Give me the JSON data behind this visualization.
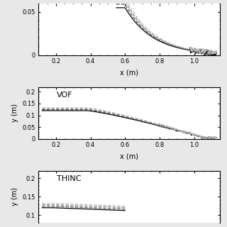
{
  "panel1_label": "",
  "panel2_label": "VOF",
  "panel3_label": "THINC",
  "xlabel": "x (m)",
  "ylabel": "y (m)",
  "xlim": [
    0.1,
    1.15
  ],
  "panel1_ylim": [
    0,
    0.06
  ],
  "panel2_ylim": [
    0,
    0.22
  ],
  "panel3_ylim": [
    0.08,
    0.22
  ],
  "panel1_yticks": [
    0,
    0.05
  ],
  "panel2_yticks": [
    0,
    0.05,
    0.1,
    0.15,
    0.2
  ],
  "panel3_yticks": [
    0.1,
    0.15,
    0.2
  ],
  "xticks": [
    0.2,
    0.4,
    0.6,
    0.8,
    1.0
  ],
  "line_colors": [
    "black",
    "#555555",
    "#888888",
    "#bbbbbb"
  ],
  "line_styles": [
    "-",
    "--",
    "--",
    "--"
  ],
  "background_color": "#e8e8e8",
  "panel_bg": "#ffffff",
  "n_lines": 4,
  "offsets": [
    0.0,
    0.004,
    0.008,
    0.012
  ]
}
